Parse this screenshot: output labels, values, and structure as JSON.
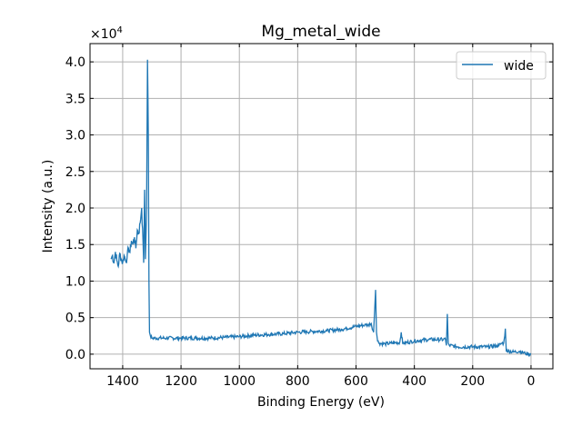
{
  "chart_data": {
    "type": "line",
    "title": "Mg_metal_wide",
    "xlabel": "Binding Energy (eV)",
    "ylabel": "Intensity (a.u.)",
    "y_scale_label": "×10",
    "y_scale_exp": "4",
    "xlim": [
      1512,
      -75
    ],
    "ylim": [
      -0.2,
      4.25
    ],
    "x_ticks": [
      1400,
      1200,
      1000,
      800,
      600,
      400,
      200,
      0
    ],
    "x_tick_labels": [
      "1400",
      "1200",
      "1000",
      "800",
      "600",
      "400",
      "200",
      "0"
    ],
    "y_ticks": [
      0,
      0.5,
      1,
      1.5,
      2,
      2.5,
      3,
      3.5,
      4
    ],
    "y_tick_labels": [
      "0.0",
      "0.5",
      "1.0",
      "1.5",
      "2.0",
      "2.5",
      "3.0",
      "3.5",
      "4.0"
    ],
    "grid": true,
    "legend": {
      "position": "top-right",
      "entries": [
        "wide"
      ]
    },
    "series": [
      {
        "name": "wide",
        "color": "#1f77b4",
        "x": [
          1440,
          1435,
          1430,
          1425,
          1420,
          1415,
          1410,
          1405,
          1400,
          1395,
          1390,
          1385,
          1380,
          1375,
          1370,
          1365,
          1360,
          1355,
          1350,
          1345,
          1340,
          1335,
          1330,
          1328,
          1325,
          1322,
          1318,
          1315,
          1312,
          1310,
          1308,
          1305,
          1300,
          1250,
          1200,
          1150,
          1100,
          1050,
          1000,
          950,
          900,
          850,
          800,
          750,
          700,
          650,
          600,
          570,
          560,
          548,
          540,
          536,
          533,
          530,
          526,
          520,
          500,
          480,
          450,
          445,
          440,
          400,
          350,
          300,
          295,
          290,
          287,
          284,
          280,
          250,
          200,
          150,
          110,
          100,
          94,
          90,
          88,
          85,
          60,
          40,
          20,
          0
        ],
        "y": [
          1.3,
          1.35,
          1.25,
          1.4,
          1.28,
          1.2,
          1.38,
          1.3,
          1.25,
          1.35,
          1.28,
          1.32,
          1.45,
          1.4,
          1.55,
          1.5,
          1.6,
          1.45,
          1.7,
          1.65,
          1.8,
          2.0,
          1.5,
          1.25,
          2.25,
          1.3,
          2.0,
          4.03,
          3.0,
          1.0,
          0.3,
          0.25,
          0.22,
          0.22,
          0.22,
          0.22,
          0.22,
          0.23,
          0.24,
          0.26,
          0.27,
          0.28,
          0.3,
          0.31,
          0.32,
          0.34,
          0.38,
          0.4,
          0.4,
          0.42,
          0.3,
          0.6,
          0.88,
          0.3,
          0.18,
          0.15,
          0.14,
          0.15,
          0.16,
          0.3,
          0.15,
          0.18,
          0.2,
          0.2,
          0.22,
          0.12,
          0.55,
          0.15,
          0.12,
          0.1,
          0.1,
          0.1,
          0.12,
          0.15,
          0.15,
          0.25,
          0.35,
          0.05,
          0.03,
          0.04,
          0.01,
          0.0
        ]
      }
    ]
  }
}
